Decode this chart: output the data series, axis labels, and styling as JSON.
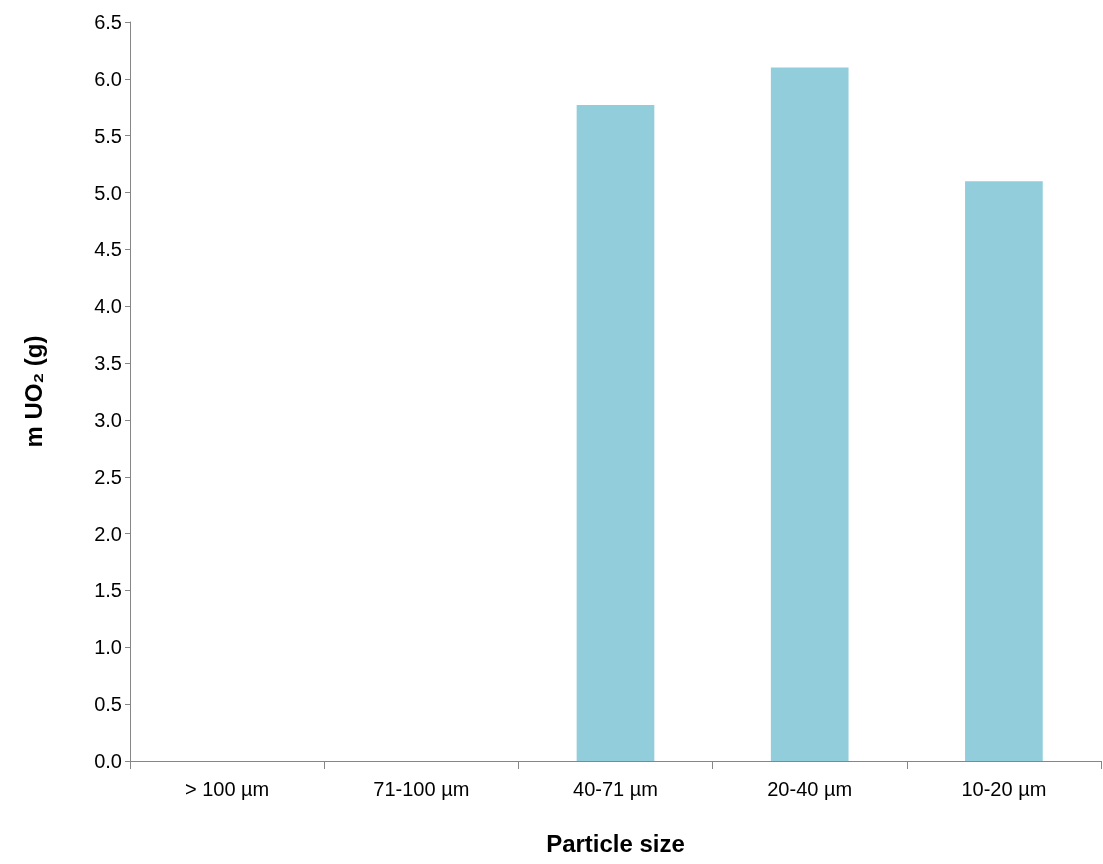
{
  "chart_data": {
    "type": "bar",
    "xlabel": "Particle size",
    "ylabel": "m UO₂ (g)",
    "categories": [
      "> 100 µm",
      "71-100 µm",
      "40-71 µm",
      "20-40 µm",
      "10-20 µm"
    ],
    "values": [
      0,
      0,
      5.77,
      6.1,
      5.1
    ],
    "color": "#92cddc",
    "ylim": [
      0,
      6.5
    ],
    "yticks": [
      {
        "value": 0,
        "label": "0.0"
      },
      0.5,
      {
        "value": 1,
        "label": "1.0"
      },
      1.5,
      {
        "value": 2,
        "label": "2.0"
      },
      2.5,
      {
        "value": 3,
        "label": "3.0"
      },
      3.5,
      {
        "value": 4,
        "label": "4.0"
      },
      4.5,
      {
        "value": 5,
        "label": "5.0"
      },
      5.5,
      {
        "value": 6,
        "label": "6.0"
      },
      6.5
    ],
    "grid": false
  }
}
